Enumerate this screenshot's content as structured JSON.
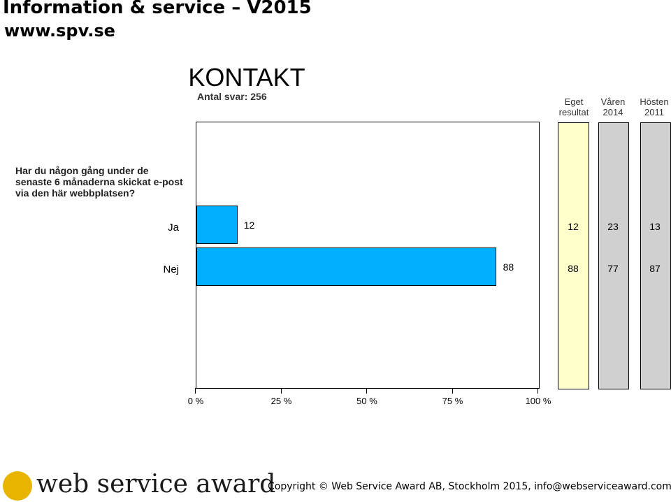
{
  "header": {
    "title": "Information & service – V2015",
    "url": "www.spv.se"
  },
  "chart_data": {
    "type": "bar",
    "title": "KONTAKT",
    "subtitle": "Antal svar: 256",
    "question": "Har du någon gång under de senaste 6 månaderna skickat e-post via den här webbplatsen?",
    "categories": [
      "Ja",
      "Nej"
    ],
    "values": [
      12,
      88
    ],
    "xlim": [
      0,
      100
    ],
    "x_ticks": [
      "0 %",
      "25 %",
      "50 %",
      "75 %",
      "100 %"
    ],
    "bar_color": "#00b0ff",
    "comparison_columns": [
      {
        "header": [
          "Eget",
          "resultat"
        ],
        "values": [
          12,
          88
        ],
        "color": "#ffffcc"
      },
      {
        "header": [
          "Våren",
          "2014"
        ],
        "values": [
          23,
          77
        ],
        "color": "#d0d0d0"
      },
      {
        "header": [
          "Hösten",
          "2011"
        ],
        "values": [
          13,
          87
        ],
        "color": "#d0d0d0"
      }
    ]
  },
  "footer": {
    "logo_text": "web service award",
    "copyright": "Copyright © Web Service Award AB, Stockholm 2015, info@webserviceaward.com"
  }
}
